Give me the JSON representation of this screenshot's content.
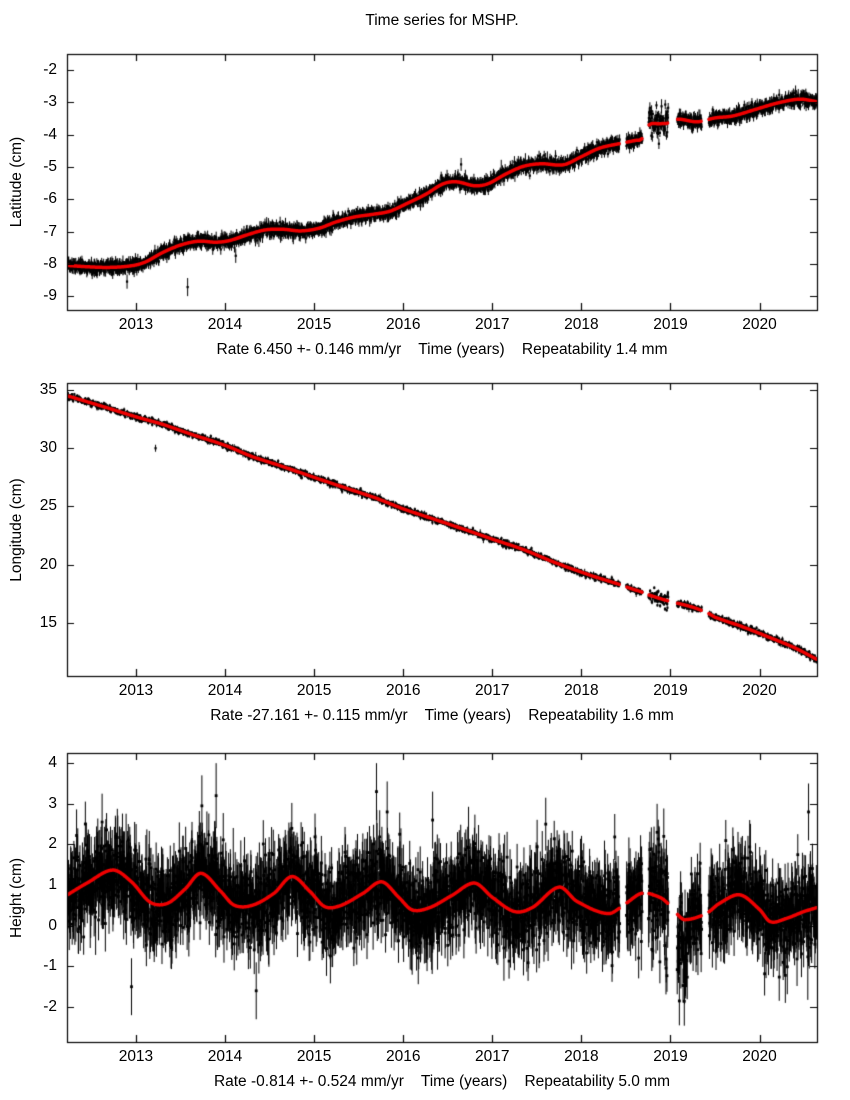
{
  "title": "Time series for MSHP.",
  "station": "MSHP",
  "colors": {
    "model_line": "#ef0000",
    "points": "#000000",
    "frame": "#000000",
    "text": "#000000",
    "background": "#ffffff"
  },
  "chart_data": [
    {
      "id": "latitude",
      "type": "scatter",
      "ylabel": "Latitude (cm)",
      "footer": "Rate 6.450 +- 0.146 mm/yr    Time (years)    Repeatability 1.4 mm",
      "rate_mm_per_yr": 6.45,
      "rate_uncertainty_mm_per_yr": 0.146,
      "repeatability_mm": 1.4,
      "xlim": [
        2012.226,
        2020.645
      ],
      "ylim": [
        -9.43,
        -1.5
      ],
      "xticks": [
        2013,
        2014,
        2015,
        2016,
        2017,
        2018,
        2019,
        2020
      ],
      "yticks": [
        -9,
        -8,
        -7,
        -6,
        -5,
        -4,
        -3,
        -2
      ],
      "points_per_year": 365,
      "noise_sigma": 0.09,
      "errorbar": 0.14,
      "gaps": [
        [
          2018.43,
          2018.505
        ],
        [
          2018.685,
          2018.755
        ],
        [
          2018.975,
          2019.075
        ],
        [
          2019.35,
          2019.43
        ]
      ],
      "noisy_intervals": [
        {
          "range": [
            2018.755,
            2018.975
          ],
          "sigma_mult": 2.6,
          "offset": 0
        }
      ],
      "outliers": [
        [
          2013.58,
          -8.72,
          0.28
        ],
        [
          2012.9,
          -8.55,
          0.22
        ],
        [
          2016.65,
          -4.92,
          0.2
        ],
        [
          2018.9,
          -3.12,
          0.22
        ],
        [
          2014.12,
          -7.75,
          0.22
        ]
      ],
      "trend": [
        [
          2012.23,
          -8.05
        ],
        [
          2012.45,
          -8.09
        ],
        [
          2012.7,
          -8.11
        ],
        [
          2012.95,
          -8.06
        ],
        [
          2013.1,
          -7.95
        ],
        [
          2013.3,
          -7.65
        ],
        [
          2013.5,
          -7.42
        ],
        [
          2013.7,
          -7.3
        ],
        [
          2013.9,
          -7.33
        ],
        [
          2014.05,
          -7.28
        ],
        [
          2014.25,
          -7.1
        ],
        [
          2014.45,
          -6.95
        ],
        [
          2014.65,
          -6.93
        ],
        [
          2014.85,
          -6.98
        ],
        [
          2015.05,
          -6.9
        ],
        [
          2015.25,
          -6.7
        ],
        [
          2015.45,
          -6.55
        ],
        [
          2015.65,
          -6.47
        ],
        [
          2015.85,
          -6.37
        ],
        [
          2016.05,
          -6.12
        ],
        [
          2016.25,
          -5.85
        ],
        [
          2016.45,
          -5.52
        ],
        [
          2016.6,
          -5.46
        ],
        [
          2016.8,
          -5.58
        ],
        [
          2016.95,
          -5.52
        ],
        [
          2017.15,
          -5.22
        ],
        [
          2017.35,
          -4.98
        ],
        [
          2017.55,
          -4.9
        ],
        [
          2017.8,
          -4.93
        ],
        [
          2018.0,
          -4.68
        ],
        [
          2018.2,
          -4.42
        ],
        [
          2018.42,
          -4.28
        ],
        [
          2018.6,
          -4.18
        ],
        [
          2018.68,
          -4.12
        ],
        [
          2018.76,
          -3.7
        ],
        [
          2018.88,
          -3.66
        ],
        [
          2018.97,
          -3.64
        ],
        [
          2019.08,
          -3.52
        ],
        [
          2019.3,
          -3.6
        ],
        [
          2019.5,
          -3.48
        ],
        [
          2019.7,
          -3.42
        ],
        [
          2019.95,
          -3.22
        ],
        [
          2020.2,
          -3.02
        ],
        [
          2020.45,
          -2.9
        ],
        [
          2020.65,
          -2.98
        ]
      ]
    },
    {
      "id": "longitude",
      "type": "scatter",
      "ylabel": "Longitude (cm)",
      "footer": "Rate -27.161 +- 0.115 mm/yr    Time (years)    Repeatability 1.6 mm",
      "rate_mm_per_yr": -27.161,
      "rate_uncertainty_mm_per_yr": 0.115,
      "repeatability_mm": 1.6,
      "xlim": [
        2012.226,
        2020.645
      ],
      "ylim": [
        10.45,
        35.6
      ],
      "xticks": [
        2013,
        2014,
        2015,
        2016,
        2017,
        2018,
        2019,
        2020
      ],
      "yticks": [
        15,
        20,
        25,
        30,
        35
      ],
      "points_per_year": 365,
      "noise_sigma": 0.12,
      "errorbar": 0.15,
      "gaps": [
        [
          2018.43,
          2018.505
        ],
        [
          2018.685,
          2018.755
        ],
        [
          2018.975,
          2019.075
        ],
        [
          2019.35,
          2019.43
        ]
      ],
      "noisy_intervals": [
        {
          "range": [
            2018.755,
            2018.975
          ],
          "sigma_mult": 2.6,
          "offset": 0
        },
        {
          "range": [
            2019.075,
            2019.2
          ],
          "sigma_mult": 1.6,
          "offset": 0
        }
      ],
      "outliers": [
        [
          2013.22,
          30.0,
          0.3
        ],
        [
          2016.9,
          22.15,
          0.3
        ],
        [
          2014.85,
          27.6,
          0.25
        ]
      ],
      "trend": [
        [
          2012.23,
          34.5
        ],
        [
          2012.6,
          33.65
        ],
        [
          2013.0,
          32.7
        ],
        [
          2013.3,
          32.05
        ],
        [
          2013.6,
          31.25
        ],
        [
          2014.0,
          30.25
        ],
        [
          2014.3,
          29.3
        ],
        [
          2014.6,
          28.55
        ],
        [
          2015.0,
          27.5
        ],
        [
          2015.35,
          26.6
        ],
        [
          2015.7,
          25.7
        ],
        [
          2016.0,
          24.8
        ],
        [
          2016.35,
          23.9
        ],
        [
          2016.7,
          23.0
        ],
        [
          2017.0,
          22.2
        ],
        [
          2017.35,
          21.3
        ],
        [
          2017.7,
          20.2
        ],
        [
          2018.1,
          19.1
        ],
        [
          2018.43,
          18.3
        ],
        [
          2018.58,
          17.9
        ],
        [
          2018.68,
          17.65
        ],
        [
          2018.76,
          17.4
        ],
        [
          2018.97,
          16.9
        ],
        [
          2019.08,
          16.7
        ],
        [
          2019.25,
          16.35
        ],
        [
          2019.42,
          15.85
        ],
        [
          2019.5,
          15.5
        ],
        [
          2019.8,
          14.7
        ],
        [
          2020.1,
          13.8
        ],
        [
          2020.4,
          12.85
        ],
        [
          2020.65,
          11.85
        ]
      ]
    },
    {
      "id": "height",
      "type": "scatter",
      "ylabel": "Height (cm)",
      "footer": "Rate -0.814 +- 0.524 mm/yr    Time (years)    Repeatability 5.0 mm",
      "rate_mm_per_yr": -0.814,
      "rate_uncertainty_mm_per_yr": 0.524,
      "repeatability_mm": 5.0,
      "xlim": [
        2012.226,
        2020.645
      ],
      "ylim": [
        -2.86,
        4.25
      ],
      "xticks": [
        2013,
        2014,
        2015,
        2016,
        2017,
        2018,
        2019,
        2020
      ],
      "yticks": [
        -2,
        -1,
        0,
        1,
        2,
        3,
        4
      ],
      "points_per_year": 365,
      "noise_sigma": 0.5,
      "errorbar": 0.55,
      "gaps": [
        [
          2018.43,
          2018.505
        ],
        [
          2018.685,
          2018.755
        ],
        [
          2018.975,
          2019.075
        ],
        [
          2019.35,
          2019.43
        ]
      ],
      "noisy_intervals": [
        {
          "range": [
            2018.755,
            2018.975
          ],
          "sigma_mult": 1.5,
          "offset": 0
        },
        {
          "range": [
            2019.075,
            2019.2
          ],
          "sigma_mult": 1.15,
          "offset": -0.75
        }
      ],
      "outliers": [
        [
          2012.62,
          2.55,
          0.7
        ],
        [
          2013.74,
          2.95,
          0.75
        ],
        [
          2013.9,
          3.2,
          0.8
        ],
        [
          2015.7,
          3.3,
          0.7
        ],
        [
          2015.82,
          2.8,
          0.75
        ],
        [
          2016.33,
          2.6,
          0.7
        ],
        [
          2012.95,
          -1.5,
          0.7
        ],
        [
          2014.35,
          -1.6,
          0.7
        ],
        [
          2019.1,
          -1.85,
          0.6
        ],
        [
          2020.55,
          2.8,
          0.7
        ],
        [
          2017.6,
          2.5,
          0.65
        ],
        [
          2018.85,
          2.3,
          0.7
        ]
      ],
      "trend": [
        [
          2012.23,
          0.76
        ],
        [
          2012.45,
          1.05
        ],
        [
          2012.74,
          1.37
        ],
        [
          2012.95,
          1.08
        ],
        [
          2013.16,
          0.58
        ],
        [
          2013.35,
          0.55
        ],
        [
          2013.55,
          0.9
        ],
        [
          2013.73,
          1.29
        ],
        [
          2013.95,
          0.85
        ],
        [
          2014.1,
          0.51
        ],
        [
          2014.3,
          0.5
        ],
        [
          2014.55,
          0.8
        ],
        [
          2014.75,
          1.21
        ],
        [
          2014.95,
          0.85
        ],
        [
          2015.12,
          0.47
        ],
        [
          2015.3,
          0.5
        ],
        [
          2015.55,
          0.8
        ],
        [
          2015.76,
          1.08
        ],
        [
          2015.95,
          0.7
        ],
        [
          2016.1,
          0.39
        ],
        [
          2016.3,
          0.45
        ],
        [
          2016.55,
          0.75
        ],
        [
          2016.8,
          1.05
        ],
        [
          2017.0,
          0.7
        ],
        [
          2017.25,
          0.35
        ],
        [
          2017.45,
          0.45
        ],
        [
          2017.75,
          0.95
        ],
        [
          2017.95,
          0.6
        ],
        [
          2018.3,
          0.3
        ],
        [
          2018.5,
          0.55
        ],
        [
          2018.68,
          0.8
        ],
        [
          2018.88,
          0.7
        ],
        [
          2018.97,
          0.55
        ],
        [
          2019.07,
          0.3
        ],
        [
          2019.16,
          0.15
        ],
        [
          2019.4,
          0.3
        ],
        [
          2019.55,
          0.55
        ],
        [
          2019.78,
          0.76
        ],
        [
          2020.0,
          0.4
        ],
        [
          2020.12,
          0.1
        ],
        [
          2020.3,
          0.18
        ],
        [
          2020.5,
          0.35
        ],
        [
          2020.65,
          0.45
        ]
      ]
    }
  ]
}
